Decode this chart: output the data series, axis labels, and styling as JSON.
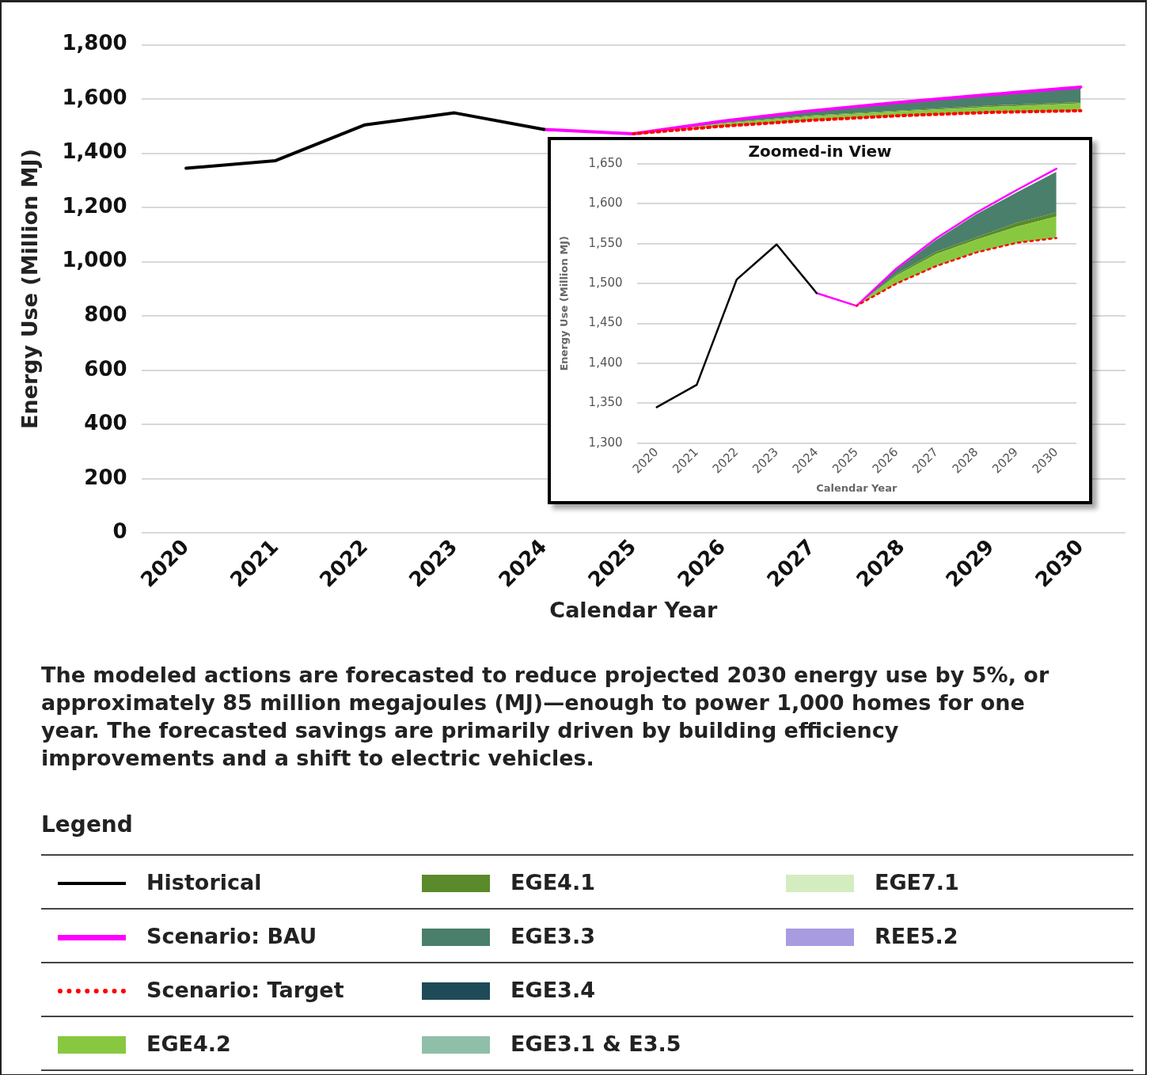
{
  "chart_data": [
    {
      "type": "line",
      "xlabel": "Calendar Year",
      "ylabel": "Energy Use (Million MJ)",
      "legend_title": "Legend",
      "legend": "bottom",
      "grid": "y",
      "marker": "none",
      "categories": [
        "2020",
        "2021",
        "2022",
        "2023",
        "2024",
        "2025",
        "2026",
        "2027",
        "2028",
        "2029",
        "2030"
      ],
      "ylim": [
        0,
        1800
      ],
      "yticks": [
        0,
        200,
        400,
        600,
        800,
        {
          "value": 1000,
          "label": "1,000"
        },
        {
          "value": 1200,
          "label": "1,200"
        },
        {
          "value": 1400,
          "label": "1,400"
        },
        {
          "value": 1600,
          "label": "1,600"
        },
        {
          "value": 1800,
          "label": "1,800"
        }
      ],
      "series": [
        {
          "name": "Historical",
          "color": "#000000",
          "values": [
            1345,
            1373,
            1505,
            1549,
            1488,
            null,
            null,
            null,
            null,
            null,
            null
          ]
        },
        {
          "name": "Scenario: BAU",
          "color": "#ff00ff",
          "values": [
            null,
            null,
            null,
            null,
            1488,
            1472,
            1519,
            1557,
            1589,
            1617,
            1644
          ]
        },
        {
          "name": "Scenario: Target",
          "line_style": "dotted",
          "color": "#ff0000",
          "values": [
            null,
            null,
            null,
            null,
            null,
            1472,
            1500,
            1522,
            1539,
            1551,
            1557
          ]
        },
        {
          "name": "EGE4.2",
          "type": "area",
          "color": "#88c840",
          "values": [
            null,
            null,
            null,
            null,
            null,
            1472,
            1510,
            1537,
            1555,
            1571,
            1584
          ]
        },
        {
          "name": "EGE4.1",
          "type": "area",
          "color": "#5a8a2a",
          "values": [
            null,
            null,
            null,
            null,
            null,
            1472,
            1512,
            1540,
            1558,
            1576,
            1589
          ]
        },
        {
          "name": "EGE3.3",
          "type": "area",
          "color": "#4a7f6c",
          "values": [
            null,
            null,
            null,
            null,
            null,
            1472,
            1518,
            1555,
            1587,
            1614,
            1640
          ]
        },
        {
          "name": "EGE3.4",
          "type": "area",
          "color": "#1f4a57",
          "values": [
            null,
            null,
            null,
            null,
            null,
            null,
            null,
            null,
            null,
            null,
            null
          ]
        },
        {
          "name": "EGE3.1 & E3.5",
          "type": "area",
          "color": "#8fbfa9",
          "values": [
            null,
            null,
            null,
            null,
            null,
            null,
            null,
            null,
            null,
            null,
            null
          ]
        },
        {
          "name": "EGE7.1",
          "type": "area",
          "color": "#d4edc0",
          "values": [
            null,
            null,
            null,
            null,
            null,
            null,
            null,
            null,
            null,
            null,
            null
          ]
        },
        {
          "name": "REE5.2",
          "type": "area",
          "color": "#a99be0",
          "values": [
            null,
            null,
            null,
            null,
            null,
            null,
            null,
            null,
            null,
            null,
            null
          ]
        }
      ],
      "annotations": [
        "The modeled actions are forecasted to reduce projected 2030 energy use by 5%, or approximately 85 million megajoules (MJ)—enough to power 1,000 homes for one year. The forecasted savings are primarily driven by building efficiency improvements and a shift to electric vehicles."
      ]
    },
    {
      "type": "line",
      "title": "Zoomed-in View",
      "xlabel": "Calendar Year",
      "ylabel": "Energy Use (Million MJ)",
      "grid": "y",
      "marker": "none",
      "categories": [
        "2020",
        "2021",
        "2022",
        "2023",
        "2024",
        "2025",
        "2026",
        "2027",
        "2028",
        "2029",
        "2030"
      ],
      "ylim": [
        1300,
        1650
      ],
      "yticks": [
        {
          "value": 1300,
          "label": "1,300"
        },
        {
          "value": 1350,
          "label": "1,350"
        },
        {
          "value": 1400,
          "label": "1,400"
        },
        {
          "value": 1450,
          "label": "1,450"
        },
        {
          "value": 1500,
          "label": "1,500"
        },
        {
          "value": 1550,
          "label": "1,550"
        },
        {
          "value": 1600,
          "label": "1,600"
        },
        {
          "value": 1650,
          "label": "1,650"
        }
      ],
      "series": [
        {
          "color": "#000000",
          "values": [
            1345,
            1373,
            1505,
            1549,
            1488,
            null,
            null,
            null,
            null,
            null,
            null
          ]
        },
        {
          "color": "#ff00ff",
          "values": [
            null,
            null,
            null,
            null,
            1488,
            1472,
            1519,
            1557,
            1589,
            1617,
            1644
          ]
        },
        {
          "line_style": "dotted",
          "color": "#ff0000",
          "values": [
            null,
            null,
            null,
            null,
            null,
            1472,
            1500,
            1522,
            1539,
            1551,
            1557
          ]
        },
        {
          "type": "area",
          "color": "#88c840",
          "values": [
            null,
            null,
            null,
            null,
            null,
            1472,
            1510,
            1537,
            1555,
            1571,
            1584
          ]
        },
        {
          "type": "area",
          "color": "#5a8a2a",
          "values": [
            null,
            null,
            null,
            null,
            null,
            1472,
            1512,
            1540,
            1558,
            1576,
            1589
          ]
        },
        {
          "type": "area",
          "color": "#4a7f6c",
          "values": [
            null,
            null,
            null,
            null,
            null,
            1472,
            1518,
            1555,
            1587,
            1614,
            1640
          ]
        }
      ]
    }
  ]
}
